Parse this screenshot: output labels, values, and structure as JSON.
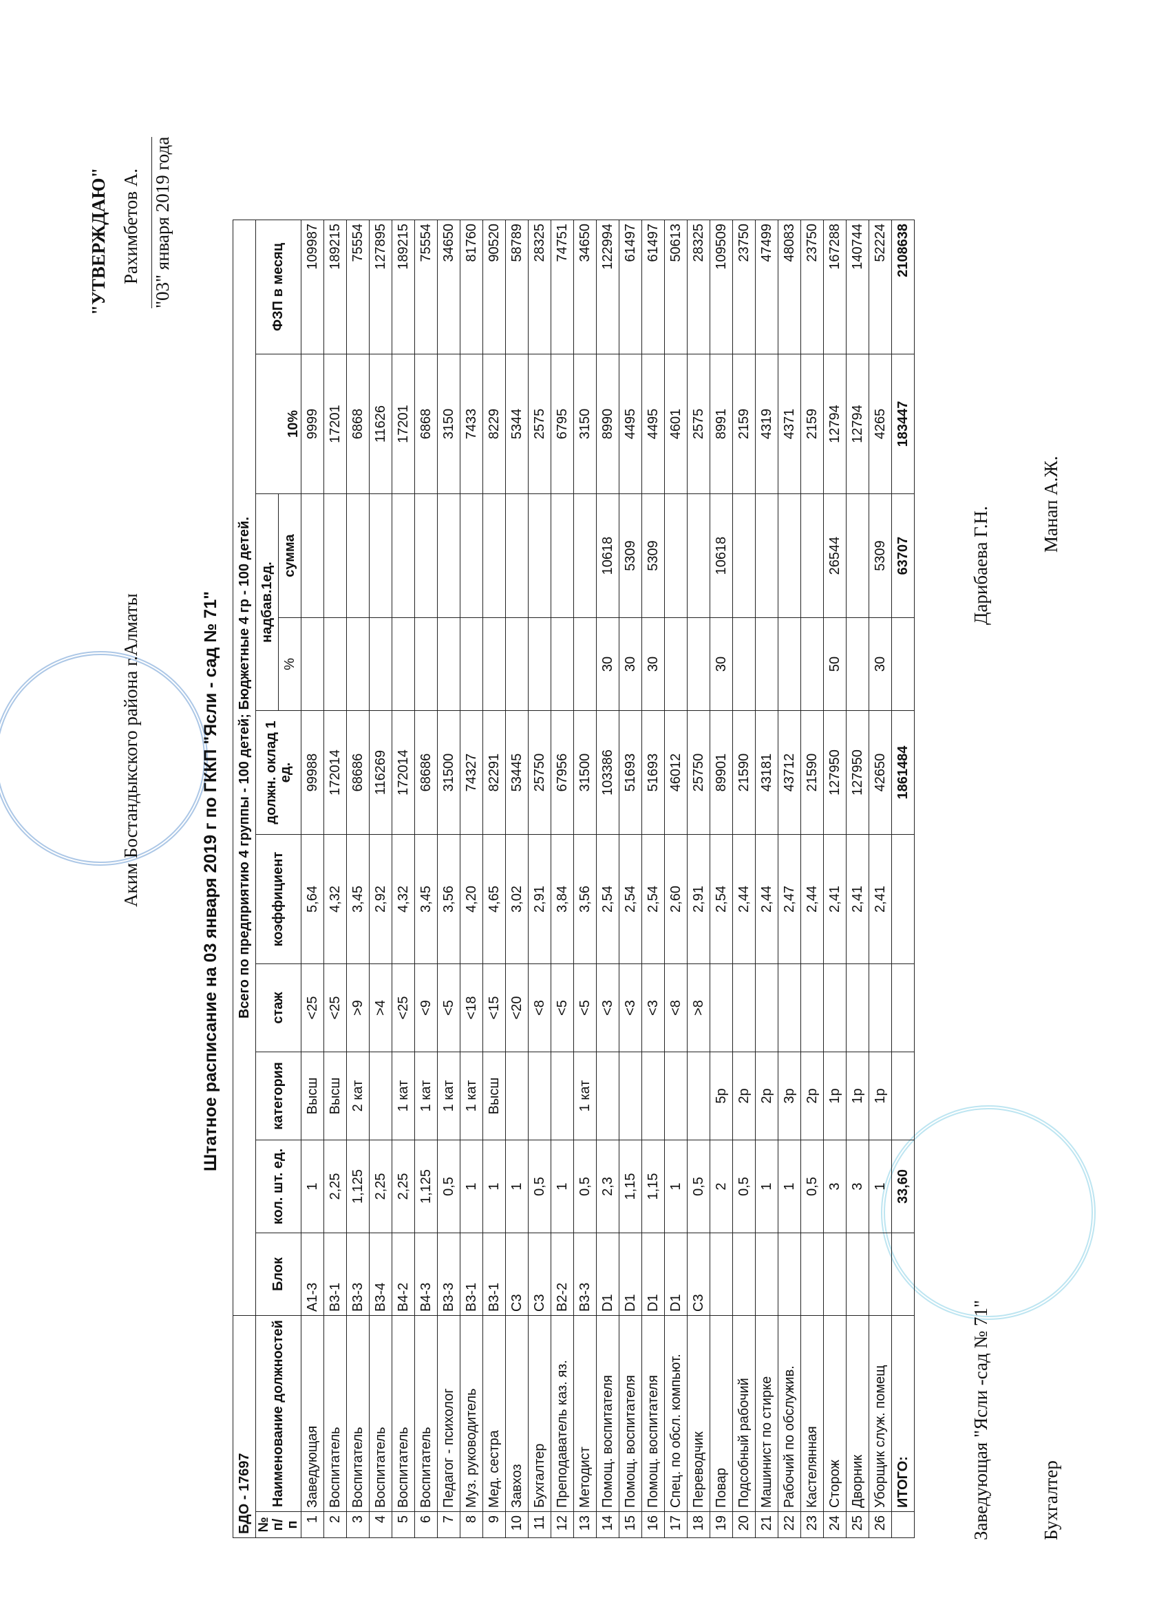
{
  "approval": {
    "approved": "\"УТВЕРЖДАЮ\"",
    "position": "Аким  Бостандыкского   района г.Алматы",
    "name": "Рахимбетов А.",
    "date": "\"03\" января 2019  года"
  },
  "title": "Штатное расписание на 03 января  2019 г по ГККП \"Ясли - сад № 71\"",
  "table": {
    "code": "БДО - 17697",
    "summary": "Всего по предприятию  4 группы - 100 детей; Бюджетные 4 гр  - 100 детей.",
    "columns": [
      "№ п/п",
      "Наименование должностей",
      "Блок",
      "кол. шт. ед.",
      "категория",
      "стаж",
      "коэффициент",
      "должн. оклад 1 ед.",
      "10%",
      "ФЗП в месяц"
    ],
    "allowance": "надбав.1ед.",
    "allowance_columns": [
      "%",
      "сумма"
    ],
    "rows": [
      [
        "1",
        "Заведующая",
        "А1-3",
        "1",
        "Высш",
        "<25",
        "5,64",
        "99988",
        null,
        null,
        "9999",
        "109987"
      ],
      [
        "2",
        "Воспитатель",
        "В3-1",
        "2,25",
        "Высш",
        "<25",
        "4,32",
        "172014",
        null,
        null,
        "17201",
        "189215"
      ],
      [
        "3",
        "Воспитатель",
        "В3-3",
        "1,125",
        "2 кат",
        ">9",
        "3,45",
        "68686",
        null,
        null,
        "6868",
        "75554"
      ],
      [
        "4",
        "Воспитатель",
        "В3-4",
        "2,25",
        null,
        ">4",
        "2,92",
        "116269",
        null,
        null,
        "11626",
        "127895"
      ],
      [
        "5",
        "Воспитатель",
        "В4-2",
        "2,25",
        "1 кат",
        "<25",
        "4,32",
        "172014",
        null,
        null,
        "17201",
        "189215"
      ],
      [
        "6",
        "Воспитатель",
        "В4-3",
        "1,125",
        "1 кат",
        "<9",
        "3,45",
        "68686",
        null,
        null,
        "6868",
        "75554"
      ],
      [
        "7",
        "Педагог - психолог",
        "В3-3",
        "0,5",
        "1 кат",
        "<5",
        "3,56",
        "31500",
        null,
        null,
        "3150",
        "34650"
      ],
      [
        "8",
        "Муз. руководитель",
        "В3-1",
        "1",
        "1 кат",
        "<18",
        "4,20",
        "74327",
        null,
        null,
        "7433",
        "81760"
      ],
      [
        "9",
        "Мед. сестра",
        "В3-1",
        "1",
        "Высш",
        "<15",
        "4,65",
        "82291",
        null,
        null,
        "8229",
        "90520"
      ],
      [
        "10",
        "Завхоз",
        "С3",
        "1",
        null,
        "<20",
        "3,02",
        "53445",
        null,
        null,
        "5344",
        "58789"
      ],
      [
        "11",
        "Бухгалтер",
        "С3",
        "0,5",
        null,
        "<8",
        "2,91",
        "25750",
        null,
        null,
        "2575",
        "28325"
      ],
      [
        "12",
        "Преподаватель каз. яз.",
        "В2-2",
        "1",
        null,
        "<5",
        "3,84",
        "67956",
        null,
        null,
        "6795",
        "74751"
      ],
      [
        "13",
        "Методист",
        "В3-3",
        "0,5",
        "1 кат",
        "<5",
        "3,56",
        "31500",
        null,
        null,
        "3150",
        "34650"
      ],
      [
        "14",
        "Помощ. воспитателя",
        "D1",
        "2,3",
        null,
        "<3",
        "2,54",
        "103386",
        "30",
        "10618",
        "8990",
        "122994"
      ],
      [
        "15",
        "Помощ. воспитателя",
        "D1",
        "1,15",
        null,
        "<3",
        "2,54",
        "51693",
        "30",
        "5309",
        "4495",
        "61497"
      ],
      [
        "16",
        "Помощ. воспитателя",
        "D1",
        "1,15",
        null,
        "<3",
        "2,54",
        "51693",
        "30",
        "5309",
        "4495",
        "61497"
      ],
      [
        "17",
        "Спец. по обсл. компьют.",
        "D1",
        "1",
        null,
        "<8",
        "2,60",
        "46012",
        null,
        null,
        "4601",
        "50613"
      ],
      [
        "18",
        "Переводчик",
        "С3",
        "0,5",
        null,
        ">8",
        "2,91",
        "25750",
        null,
        null,
        "2575",
        "28325"
      ],
      [
        "19",
        "Повар",
        null,
        "2",
        "5р",
        null,
        "2,54",
        "89901",
        "30",
        "10618",
        "8991",
        "109509"
      ],
      [
        "20",
        "Подсобный рабочий",
        null,
        "0,5",
        "2р",
        null,
        "2,44",
        "21590",
        null,
        null,
        "2159",
        "23750"
      ],
      [
        "21",
        "Машинист по стирке",
        null,
        "1",
        "2р",
        null,
        "2,44",
        "43181",
        null,
        null,
        "4319",
        "47499"
      ],
      [
        "22",
        "Рабочий по обслужив.",
        null,
        "1",
        "3р",
        null,
        "2,47",
        "43712",
        null,
        null,
        "4371",
        "48083"
      ],
      [
        "23",
        "Кастелянная",
        null,
        "0,5",
        "2р",
        null,
        "2,44",
        "21590",
        null,
        null,
        "2159",
        "23750"
      ],
      [
        "24",
        "Сторож",
        null,
        "3",
        "1р",
        null,
        "2,41",
        "127950",
        "50",
        "26544",
        "12794",
        "167288"
      ],
      [
        "25",
        "Дворник",
        null,
        "3",
        "1р",
        null,
        "2,41",
        "127950",
        null,
        null,
        "12794",
        "140744"
      ],
      [
        "26",
        "Уборщик служ. помещ",
        null,
        "1",
        "1р",
        null,
        "2,41",
        "42650",
        "30",
        "5309",
        "4265",
        "52224"
      ]
    ],
    "total": [
      null,
      "ИТОГО:",
      null,
      "33,60",
      null,
      null,
      null,
      "1861484",
      null,
      "63707",
      "183447",
      "2108638"
    ]
  },
  "signatures": [
    {
      "role": "Заведующая \"Ясли -сад № 71\"",
      "name": "Дарибаева Г.Н."
    },
    {
      "role": "Бухгалтер",
      "name": "Манап А.Ж."
    }
  ]
}
